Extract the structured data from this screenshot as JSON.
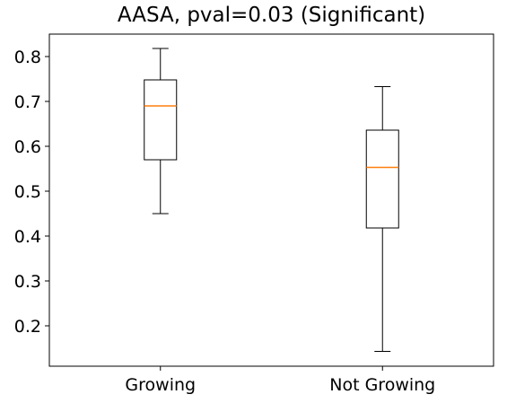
{
  "chart_data": {
    "type": "box",
    "title": "AASA, pval=0.03 (Significant)",
    "xlabel": "",
    "ylabel": "",
    "categories": [
      "Growing",
      "Not Growing"
    ],
    "ylim": [
      0.11,
      0.85
    ],
    "yticks": [
      0.2,
      0.3,
      0.4,
      0.5,
      0.6,
      0.7,
      0.8
    ],
    "ytick_labels": [
      "0.2",
      "0.3",
      "0.4",
      "0.5",
      "0.6",
      "0.7",
      "0.8"
    ],
    "boxes": [
      {
        "category": "Growing",
        "whisker_low": 0.45,
        "q1": 0.57,
        "median": 0.69,
        "q3": 0.748,
        "whisker_high": 0.818
      },
      {
        "category": "Not Growing",
        "whisker_low": 0.143,
        "q1": 0.418,
        "median": 0.553,
        "q3": 0.636,
        "whisker_high": 0.733
      }
    ],
    "grid": false,
    "median_color": "#ff7f0e",
    "box_color": "#000000"
  }
}
